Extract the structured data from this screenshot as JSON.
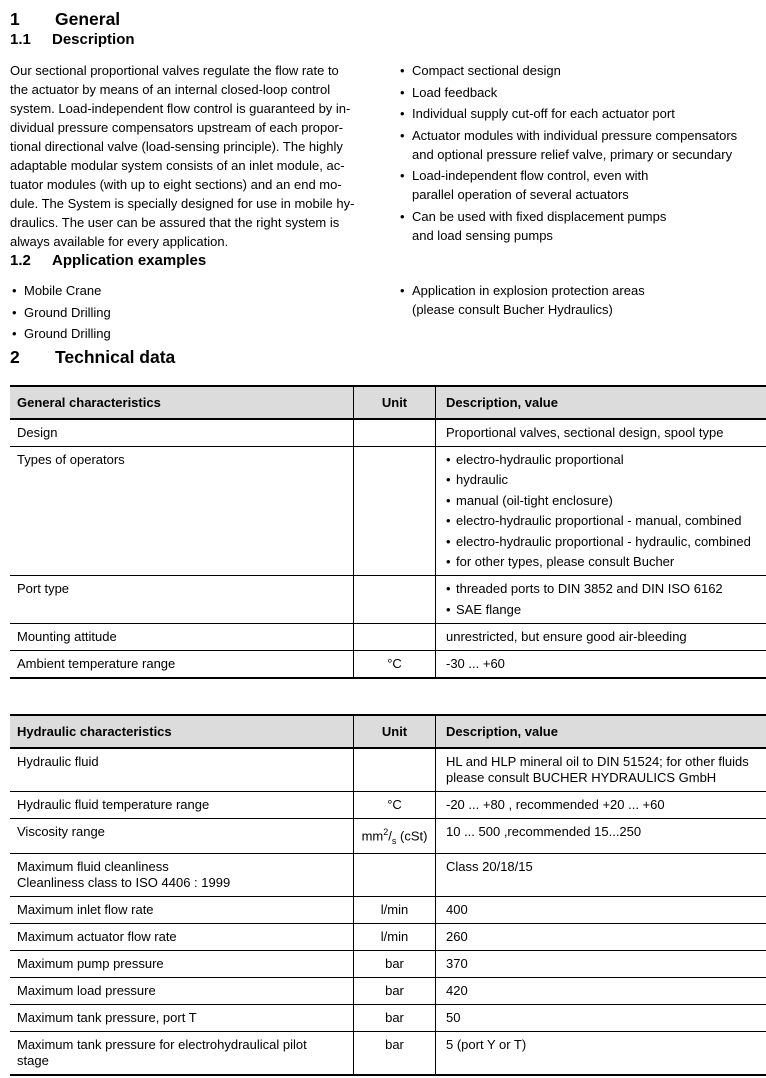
{
  "sections": {
    "general": {
      "number": "1",
      "title": "General"
    },
    "description": {
      "number": "1.1",
      "title": "Description"
    },
    "application": {
      "number": "1.2",
      "title": "Application examples"
    },
    "technical": {
      "number": "2",
      "title": "Technical data"
    }
  },
  "description": {
    "paragraph": "Our sectional proportional valves regulate the flow rate to\nthe actuator by means of an internal closed-loop control\nsystem. Load-independent flow control is guaranteed by in-\ndividual pressure compensators upstream of each propor-\ntional directional valve (load-sensing principle). The highly\nadaptable modular system consists of an inlet module, ac-\ntuator modules (with up to eight sections) and an end mo-\ndule. The System is specially designed for use in mobile hy-\ndraulics. The user can be assured that the right system is\nalways available for every application.",
    "features": [
      "Compact sectional design",
      "Load feedback",
      "Individual supply cut-off for each actuator port",
      "Actuator modules with individual pressure compensators\nand optional pressure relief valve, primary or secundary",
      "Load-independent flow control, even with\nparallel operation of several actuators",
      "Can be used with fixed displacement pumps\nand load sensing pumps"
    ]
  },
  "application": {
    "left": [
      "Mobile Crane",
      "Ground Drilling",
      "Ground Drilling"
    ],
    "right": [
      "Application in explosion protection areas\n(please consult Bucher Hydraulics)"
    ]
  },
  "tables": [
    {
      "name": "general-characteristics",
      "headers": [
        "General characteristics",
        "Unit",
        "Description, value"
      ],
      "rows": [
        {
          "label": "Design",
          "unit": "",
          "value": "Proportional valves, sectional design, spool type"
        },
        {
          "label": "Types of operators",
          "unit": "",
          "bullets": [
            "electro-hydraulic proportional",
            "hydraulic",
            "manual (oil-tight enclosure)",
            "electro-hydraulic proportional - manual, combined",
            "electro-hydraulic proportional - hydraulic, combined",
            "for other types, please consult Bucher"
          ]
        },
        {
          "label": "Port type",
          "unit": "",
          "bullets": [
            "threaded ports to DIN 3852 and DIN ISO 6162",
            "SAE flange"
          ]
        },
        {
          "label": "Mounting attitude",
          "unit": "",
          "value": "unrestricted, but ensure good air-bleeding"
        },
        {
          "label": "Ambient temperature range",
          "unit": "°C",
          "value": "-30 ... +60"
        }
      ]
    },
    {
      "name": "hydraulic-characteristics",
      "headers": [
        "Hydraulic characteristics",
        "Unit",
        "Description, value"
      ],
      "rows": [
        {
          "label": "Hydraulic fluid",
          "unit": "",
          "value": "HL and HLP mineral oil to DIN 51524; for other fluids\nplease consult BUCHER HYDRAULICS GmbH"
        },
        {
          "label": "Hydraulic fluid temperature range",
          "unit": "°C",
          "value": "-20 ... +80 , recommended +20 ... +60"
        },
        {
          "label": "Viscosity range",
          "unit": [
            "mm",
            {
              "sup": "2"
            },
            "/",
            {
              "sub": "s"
            },
            " (cSt)"
          ],
          "value": "10 ... 500 ,recommended 15...250"
        },
        {
          "label": "Maximum fluid cleanliness\nCleanliness class to ISO 4406 : 1999",
          "unit": "",
          "value": "Class 20/18/15"
        },
        {
          "label": "Maximum inlet flow rate",
          "unit": "l/min",
          "value": "400"
        },
        {
          "label": "Maximum actuator flow rate",
          "unit": "l/min",
          "value": "260"
        },
        {
          "label": "Maximum pump pressure",
          "unit": "bar",
          "value": "370"
        },
        {
          "label": "Maximum load pressure",
          "unit": "bar",
          "value": "420"
        },
        {
          "label": "Maximum tank pressure, port T",
          "unit": "bar",
          "value": "50"
        },
        {
          "label": "Maximum tank pressure for electrohydraulical pilot\nstage",
          "unit": "bar",
          "value": "5 (port Y or T)"
        }
      ]
    }
  ],
  "colors": {
    "page_bg": "#ffffff",
    "text": "#000000",
    "border": "#000000",
    "table_header_bg": "#dcdcdc"
  }
}
